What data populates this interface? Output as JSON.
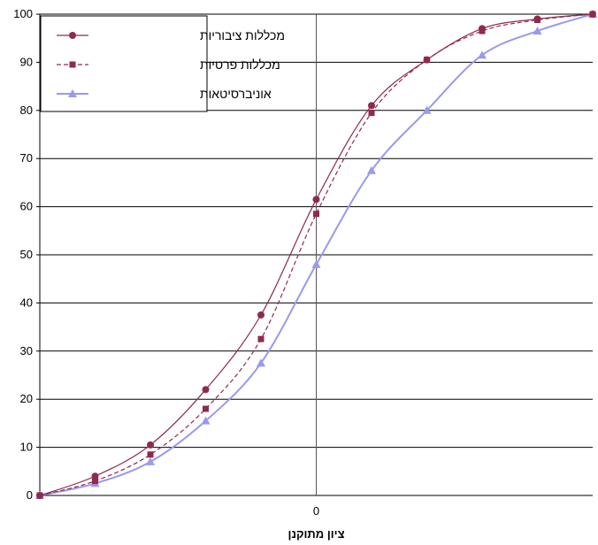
{
  "chart_data": {
    "type": "line",
    "title": "",
    "xlabel": "ציון מתוקנן",
    "ylabel": "",
    "xlim": [
      -5,
      5
    ],
    "ylim": [
      0,
      100
    ],
    "y_ticks": [
      0,
      10,
      20,
      30,
      40,
      50,
      60,
      70,
      80,
      90,
      100
    ],
    "x_tick_labels": [
      {
        "value": 0,
        "label": "0"
      }
    ],
    "grid": {
      "horizontal": true,
      "vertical": false
    },
    "reference_line_x": 0,
    "legend_position": "top-left",
    "x": [
      -5,
      -4,
      -3,
      -2,
      -1,
      0,
      1,
      2,
      3,
      4,
      5
    ],
    "series": [
      {
        "name": "מכללות ציבוריות",
        "color": "#8e2a4e",
        "marker": "circle",
        "dash": "solid",
        "values": [
          0,
          4,
          10.5,
          22,
          37.5,
          61.5,
          81,
          90.5,
          97,
          99,
          100
        ]
      },
      {
        "name": "מכללות פרטיות",
        "color": "#8e2a4e",
        "marker": "square",
        "dash": "dashed",
        "values": [
          0,
          3,
          8.5,
          18,
          32.5,
          58.5,
          79.5,
          90.5,
          96.5,
          98.8,
          100
        ]
      },
      {
        "name": "אוניברסיטאות",
        "color": "#9999ee",
        "marker": "triangle",
        "dash": "solid",
        "values": [
          0,
          2.5,
          7,
          15.5,
          27.5,
          48,
          67.5,
          80,
          91.5,
          96.5,
          100
        ]
      }
    ]
  }
}
